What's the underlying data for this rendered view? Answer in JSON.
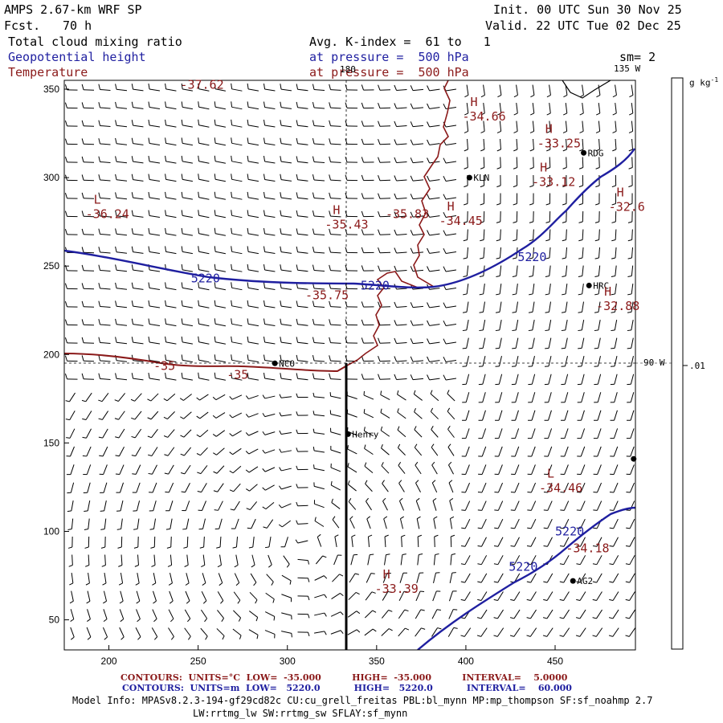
{
  "header": {
    "model": "AMPS 2.67-km WRF SP",
    "fcst_label": "Fcst.",
    "fcst_value": "70 h",
    "init": "Init. 00 UTC Sun 30 Nov 25",
    "valid": "Valid. 22 UTC Tue 02 Dec 25",
    "field1": "Total cloud mixing ratio",
    "field2": "Geopotential height",
    "field3": "Temperature",
    "avg": "Avg. K-index =  61 to   1",
    "pressure1": "at pressure =  500 hPa",
    "pressure2": "at pressure =  500 hPa",
    "sm": "sm= 2"
  },
  "colors": {
    "height_contour": "#1f1fa0",
    "temp_contour": "#8b1a1a",
    "wind_barb": "#000000",
    "axis": "#000000"
  },
  "axes": {
    "x_ticks": [
      "200",
      "250",
      "300",
      "350",
      "400",
      "450"
    ],
    "y_ticks": [
      "350",
      "300",
      "250",
      "200",
      "150",
      "100",
      "50"
    ],
    "x_range": [
      175,
      495
    ],
    "y_range": [
      33,
      355
    ]
  },
  "meridians": {
    "lon_135": "135 W",
    "lon_90": "90 W",
    "lon_180": "180"
  },
  "colorbar": {
    "unit": "g kg",
    "unit_sup": "-1",
    "tick": ".01"
  },
  "stations": [
    {
      "name": "KLN",
      "x": 402,
      "y": 300
    },
    {
      "name": "RDG",
      "x": 466,
      "y": 314
    },
    {
      "name": "HRC",
      "x": 469,
      "y": 239
    },
    {
      "name": "NCO",
      "x": 293,
      "y": 195
    },
    {
      "name": "Henry",
      "x": 334,
      "y": 155
    },
    {
      "name": "AG2",
      "x": 460,
      "y": 72
    },
    {
      "name": "",
      "x": 494,
      "y": 141
    }
  ],
  "temp_labels": [
    {
      "kind": "",
      "value": "-37.62",
      "x": 240,
      "y": 352
    },
    {
      "kind": "H",
      "value": "-34.66",
      "x": 398,
      "y": 334
    },
    {
      "kind": "H",
      "value": "-33.25",
      "x": 440,
      "y": 319
    },
    {
      "kind": "H",
      "value": "-33.12",
      "x": 437,
      "y": 297
    },
    {
      "kind": "H",
      "value": "-32.6",
      "x": 480,
      "y": 283
    },
    {
      "kind": "L",
      "value": "-36.24",
      "x": 187,
      "y": 279
    },
    {
      "kind": "H",
      "value": "-35.43",
      "x": 321,
      "y": 273
    },
    {
      "kind": "",
      "value": "-35.83",
      "x": 355,
      "y": 279
    },
    {
      "kind": "H",
      "value": "-34.45",
      "x": 385,
      "y": 275
    },
    {
      "kind": "",
      "value": "-35.75",
      "x": 310,
      "y": 233
    },
    {
      "kind": "H",
      "value": "-32.88",
      "x": 473,
      "y": 227
    },
    {
      "kind": "",
      "value": "-35",
      "x": 225,
      "y": 193
    },
    {
      "kind": "",
      "value": "-35",
      "x": 266,
      "y": 188
    },
    {
      "kind": "L",
      "value": "-34.46",
      "x": 441,
      "y": 124
    },
    {
      "kind": "",
      "value": "-34.18",
      "x": 456,
      "y": 90
    },
    {
      "kind": "H",
      "value": "-33.39",
      "x": 349,
      "y": 67
    }
  ],
  "height_labels": [
    {
      "value": "5220",
      "x": 429,
      "y": 255
    },
    {
      "value": "5220",
      "x": 246,
      "y": 243
    },
    {
      "value": "5220",
      "x": 341,
      "y": 239
    },
    {
      "value": "5220",
      "x": 450,
      "y": 100
    },
    {
      "value": "5220",
      "x": 424,
      "y": 80
    }
  ],
  "contour_info": {
    "temp": "CONTOURS:  UNITS=°C  LOW=  -35.000          HIGH=  -35.000          INTERVAL=    5.0000",
    "height": "CONTOURS:  UNITS=m  LOW=   5220.0           HIGH=   5220.0           INTERVAL=    60.000"
  },
  "model_info_1": "Model Info: MPASv8.2.3-194-gf29cd82c CU:cu_grell_freitas PBL:bl_mynn MP:mp_thompson SF:sf_noahmp 2.7",
  "model_info_2": "LW:rrtmg_lw SW:rrtmg_sw SFLAY:sf_mynn"
}
